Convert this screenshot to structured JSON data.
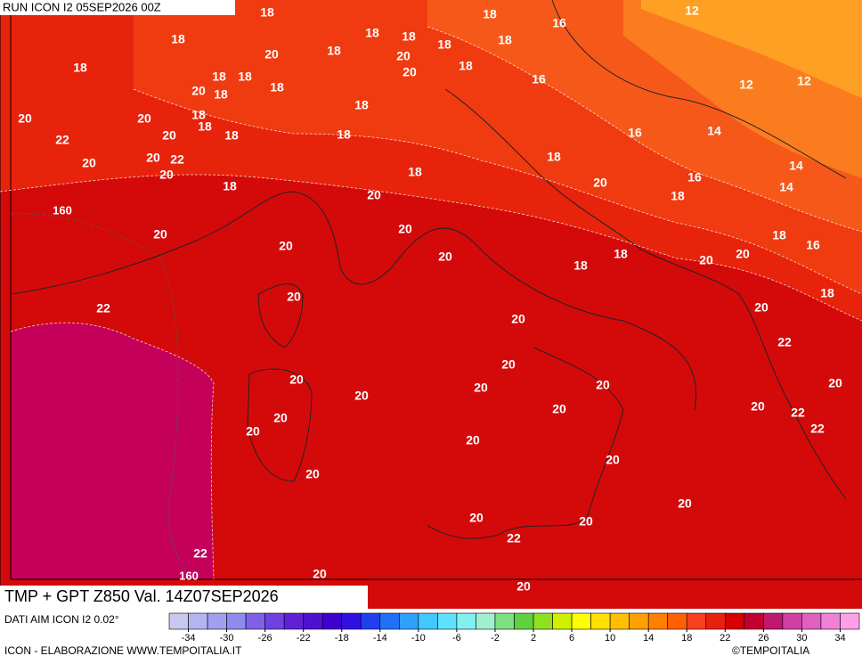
{
  "header": {
    "run": "RUN ICON I2 05SEP2026 00Z"
  },
  "title": "TMP + GPT Z850 Val. 14Z07SEP2026",
  "source": "DATI AIM ICON I2 0.02°",
  "credit": "ICON - ELABORAZIONE WWW.TEMPOITALIA.IT",
  "copyright": "©TEMPOITALIA",
  "colorbar": {
    "lim": [
      -36,
      36
    ],
    "ticks": [
      -34,
      -30,
      -26,
      -22,
      -18,
      -14,
      -10,
      -6,
      -2,
      2,
      6,
      10,
      14,
      18,
      22,
      26,
      30,
      34
    ],
    "colors": [
      "#c8c8f0",
      "#b4b4f0",
      "#a0a0f0",
      "#8c8cf0",
      "#8060e8",
      "#7040e0",
      "#6020d8",
      "#5010d0",
      "#4000d0",
      "#3010e0",
      "#2040f0",
      "#2070f8",
      "#30a0ff",
      "#40c8ff",
      "#60e0ff",
      "#80f0f0",
      "#a0f0d0",
      "#80e080",
      "#60d040",
      "#90e020",
      "#d0f000",
      "#ffff00",
      "#ffe000",
      "#ffc000",
      "#ffa000",
      "#ff8000",
      "#ff6000",
      "#f84020",
      "#e82010",
      "#d80000",
      "#c00030",
      "#c01870",
      "#d040a0",
      "#e060c0",
      "#f080d8",
      "#ffa0e8"
    ]
  },
  "map": {
    "temperature_labels": [
      18,
      18,
      16,
      12,
      18,
      18,
      18,
      18,
      18,
      20,
      18,
      20,
      18,
      20,
      18,
      18,
      18,
      20,
      18,
      18,
      16,
      12,
      12,
      18,
      20,
      20,
      18,
      18,
      20,
      18,
      18,
      16,
      14,
      22,
      20,
      20,
      22,
      20,
      18,
      14,
      18,
      16,
      14,
      18,
      20,
      20,
      18,
      20,
      20,
      18,
      16,
      20,
      18,
      18,
      20,
      20,
      20,
      20,
      18,
      22,
      20,
      20,
      22,
      20,
      20,
      20,
      20,
      20,
      20,
      20,
      20,
      22,
      22,
      20,
      20,
      20,
      20,
      20,
      20,
      20,
      20,
      22,
      22,
      20,
      20
    ],
    "geopotential_labels": [
      160,
      160
    ]
  }
}
